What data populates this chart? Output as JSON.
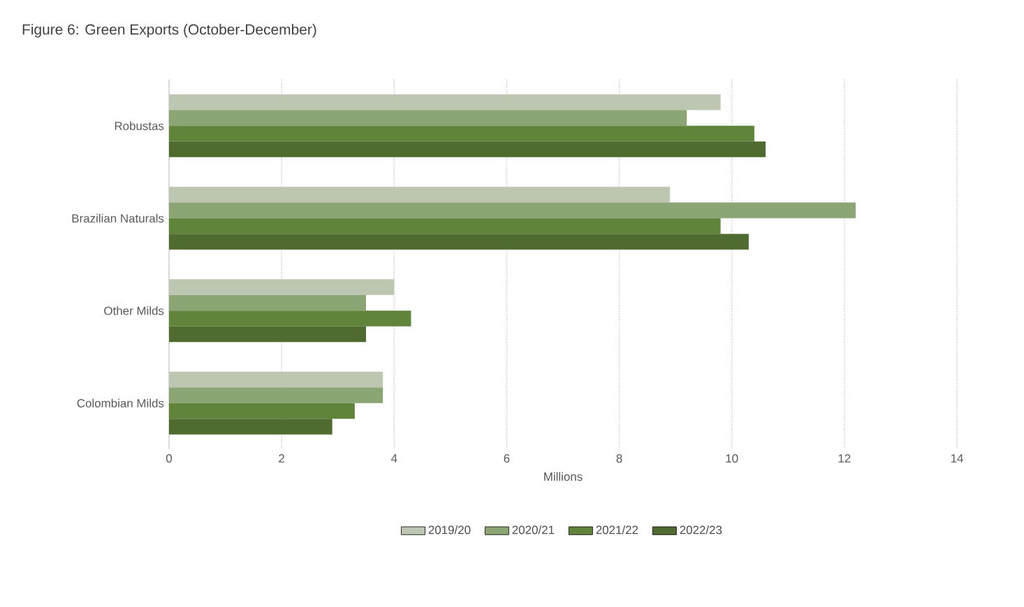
{
  "chart_data": {
    "type": "bar",
    "orientation": "horizontal",
    "title": "Figure 6: Green Exports (October-December)",
    "xlabel": "Millions",
    "categories": [
      "Robustas",
      "Brazilian Naturals",
      "Other Milds",
      "Colombian Milds"
    ],
    "series": [
      {
        "name": "2019/20",
        "color": "#bcc6b1",
        "values": [
          9.8,
          8.9,
          4.0,
          3.8
        ]
      },
      {
        "name": "2020/21",
        "color": "#8ba574",
        "values": [
          9.2,
          12.2,
          3.5,
          3.8
        ]
      },
      {
        "name": "2021/22",
        "color": "#61843b",
        "values": [
          10.4,
          9.8,
          4.3,
          3.3
        ]
      },
      {
        "name": "2022/23",
        "color": "#4f6b2f",
        "values": [
          10.6,
          10.3,
          3.5,
          2.9
        ]
      }
    ],
    "xlim": [
      0,
      14
    ],
    "xticks": [
      0,
      2,
      4,
      6,
      8,
      10,
      12,
      14
    ],
    "grid": "x",
    "legend": "bottom"
  }
}
